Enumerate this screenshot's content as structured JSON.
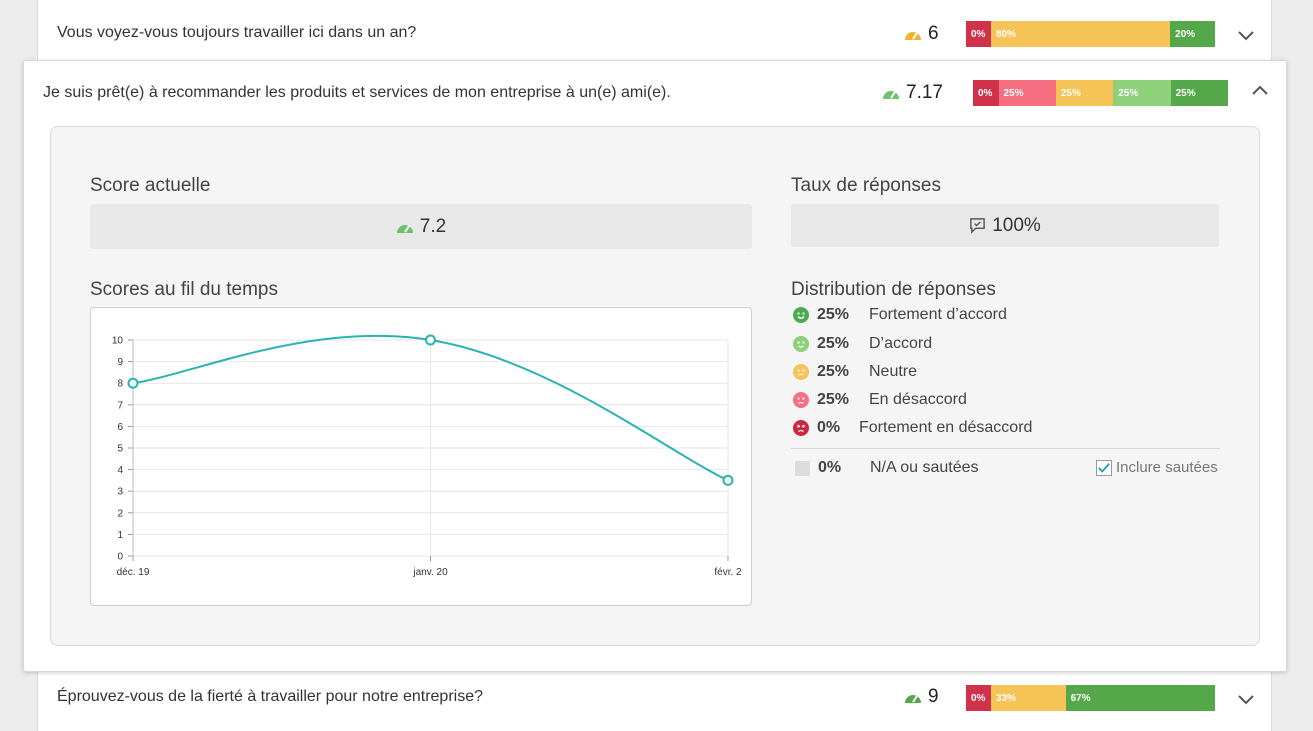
{
  "questions": [
    {
      "text": "Vous voyez-vous toujours travailler ici dans un an?",
      "score": "6",
      "gauge_color": "#f0b429",
      "segments": [
        {
          "label": "0%",
          "color": "#d0324b",
          "frac": 0.1
        },
        {
          "label": "80%",
          "color": "#f5c356",
          "frac": 0.72
        },
        {
          "label": "20%",
          "color": "#55a84a",
          "frac": 0.18
        }
      ],
      "expanded": false
    },
    {
      "text": "Je suis prêt(e) à recommander les produits et services de mon entreprise à un(e) ami(e).",
      "score": "7.17",
      "gauge_color": "#6cc26a",
      "segments": [
        {
          "label": "0%",
          "color": "#d0324b",
          "frac": 0.1
        },
        {
          "label": "25%",
          "color": "#f56f80",
          "frac": 0.225
        },
        {
          "label": "25%",
          "color": "#f5c356",
          "frac": 0.225
        },
        {
          "label": "25%",
          "color": "#8fd07a",
          "frac": 0.225
        },
        {
          "label": "25%",
          "color": "#55a84a",
          "frac": 0.225
        }
      ],
      "expanded": true
    },
    {
      "text": "Éprouvez-vous de la fierté à travailler pour notre entreprise?",
      "score": "9",
      "gauge_color": "#55a84a",
      "segments": [
        {
          "label": "0%",
          "color": "#d0324b",
          "frac": 0.1
        },
        {
          "label": "33%",
          "color": "#f5c356",
          "frac": 0.3
        },
        {
          "label": "67%",
          "color": "#55a84a",
          "frac": 0.6
        }
      ],
      "expanded": false
    }
  ],
  "detail": {
    "current_score_title": "Score actuelle",
    "current_score_value": "7.2",
    "response_rate_title": "Taux de réponses",
    "response_rate_value": "100%",
    "scores_over_time_title": "Scores au fil du temps",
    "distribution_title": "Distribution de réponses",
    "distribution": [
      {
        "pct": "25%",
        "label": "Fortement d’accord",
        "color": "#4caa4e",
        "face": "happy"
      },
      {
        "pct": "25%",
        "label": "D’accord",
        "color": "#8fd07a",
        "face": "smile"
      },
      {
        "pct": "25%",
        "label": "Neutre",
        "color": "#f5c356",
        "face": "neutral"
      },
      {
        "pct": "25%",
        "label": "En désaccord",
        "color": "#f56f80",
        "face": "sad"
      },
      {
        "pct": "0%",
        "label": "Fortement en désaccord",
        "color": "#c9283e",
        "face": "angry"
      }
    ],
    "na_pct": "0%",
    "na_label": "N/A ou sautées",
    "include_skipped_label": "Inclure sautées",
    "include_skipped_checked": true
  },
  "chart_data": {
    "type": "line",
    "categories": [
      "déc. 19",
      "janv. 20",
      "févr. 2"
    ],
    "values": [
      8,
      10,
      3.5
    ],
    "ylim": [
      0,
      10
    ],
    "yticks": [
      0,
      1,
      2,
      3,
      4,
      5,
      6,
      7,
      8,
      9,
      10
    ],
    "line_color": "#2bb3b1",
    "grid": true
  }
}
